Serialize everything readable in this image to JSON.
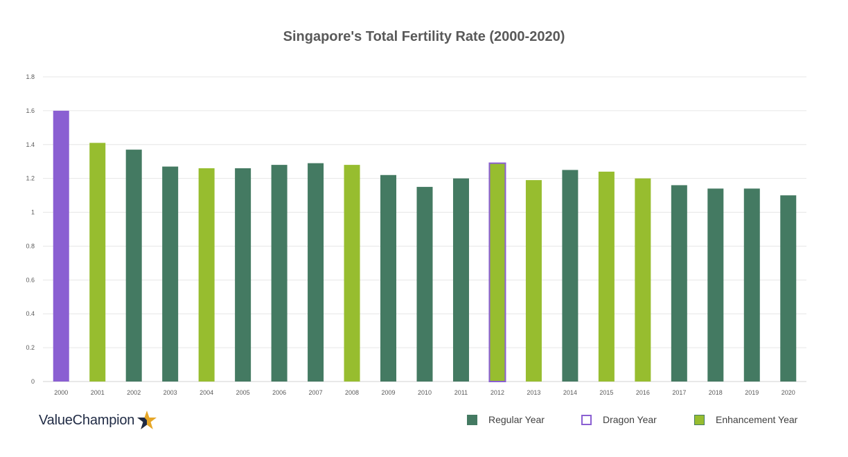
{
  "brand": {
    "name": "ValueChampion",
    "logo_icon": "star-icon"
  },
  "colors": {
    "regular": "#447a62",
    "dragon": "#8a5fd2",
    "enhancement": "#97bd2f",
    "star_gold": "#e6a627",
    "star_navy": "#1f2a44"
  },
  "legend": [
    {
      "key": "regular",
      "label": "Regular Year"
    },
    {
      "key": "dragon",
      "label": "Dragon Year"
    },
    {
      "key": "enhancement",
      "label": "Enhancement Year"
    }
  ],
  "chart_data": {
    "type": "bar",
    "title": "Singapore's Total Fertility Rate (2000-2020)",
    "xlabel": "",
    "ylabel": "",
    "ylim": [
      0,
      1.8
    ],
    "yticks": [
      "0",
      "0.2",
      "0.4",
      "0.6",
      "0.8",
      "1",
      "1.2",
      "1.4",
      "1.6",
      "1.8"
    ],
    "grid": true,
    "legend_position": "bottom-right",
    "categories": [
      "2000",
      "2001",
      "2002",
      "2003",
      "2004",
      "2005",
      "2006",
      "2007",
      "2008",
      "2009",
      "2010",
      "2011",
      "2012",
      "2013",
      "2014",
      "2015",
      "2016",
      "2017",
      "2018",
      "2019",
      "2020"
    ],
    "values": [
      1.6,
      1.41,
      1.37,
      1.27,
      1.26,
      1.26,
      1.28,
      1.29,
      1.28,
      1.22,
      1.15,
      1.2,
      1.29,
      1.19,
      1.25,
      1.24,
      1.2,
      1.16,
      1.14,
      1.14,
      1.1
    ],
    "year_types": [
      "dragon",
      "enhancement",
      "regular",
      "regular",
      "enhancement",
      "regular",
      "regular",
      "regular",
      "enhancement",
      "regular",
      "regular",
      "regular",
      "dragon",
      "enhancement",
      "regular",
      "enhancement",
      "enhancement",
      "regular",
      "regular",
      "regular",
      "regular"
    ]
  }
}
